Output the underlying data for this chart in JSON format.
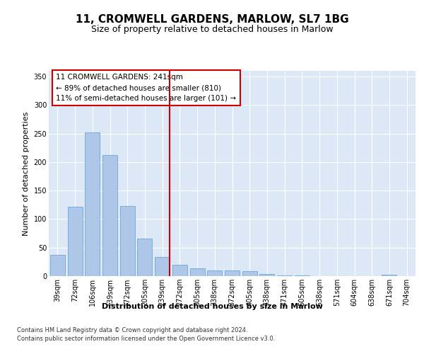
{
  "title": "11, CROMWELL GARDENS, MARLOW, SL7 1BG",
  "subtitle": "Size of property relative to detached houses in Marlow",
  "xlabel": "Distribution of detached houses by size in Marlow",
  "ylabel": "Number of detached properties",
  "categories": [
    "39sqm",
    "72sqm",
    "106sqm",
    "139sqm",
    "172sqm",
    "205sqm",
    "239sqm",
    "272sqm",
    "305sqm",
    "338sqm",
    "372sqm",
    "405sqm",
    "438sqm",
    "471sqm",
    "505sqm",
    "538sqm",
    "571sqm",
    "604sqm",
    "638sqm",
    "671sqm",
    "704sqm"
  ],
  "values": [
    37,
    122,
    252,
    212,
    123,
    66,
    33,
    20,
    14,
    10,
    10,
    9,
    4,
    1,
    1,
    0,
    0,
    0,
    0,
    3,
    0
  ],
  "bar_color": "#aec6e8",
  "bar_edge_color": "#5a9fd4",
  "vline_index": 6,
  "vline_color": "#cc0000",
  "annotation_text": "11 CROMWELL GARDENS: 241sqm\n← 89% of detached houses are smaller (810)\n11% of semi-detached houses are larger (101) →",
  "annotation_box_color": "#ffffff",
  "annotation_box_edge": "#cc0000",
  "ylim": [
    0,
    360
  ],
  "yticks": [
    0,
    50,
    100,
    150,
    200,
    250,
    300,
    350
  ],
  "bg_color": "#dce8f5",
  "grid_color": "#ffffff",
  "footer": "Contains HM Land Registry data © Crown copyright and database right 2024.\nContains public sector information licensed under the Open Government Licence v3.0.",
  "title_fontsize": 11,
  "subtitle_fontsize": 9,
  "xlabel_fontsize": 8,
  "ylabel_fontsize": 8,
  "tick_fontsize": 7,
  "annotation_fontsize": 7.5,
  "footer_fontsize": 6
}
